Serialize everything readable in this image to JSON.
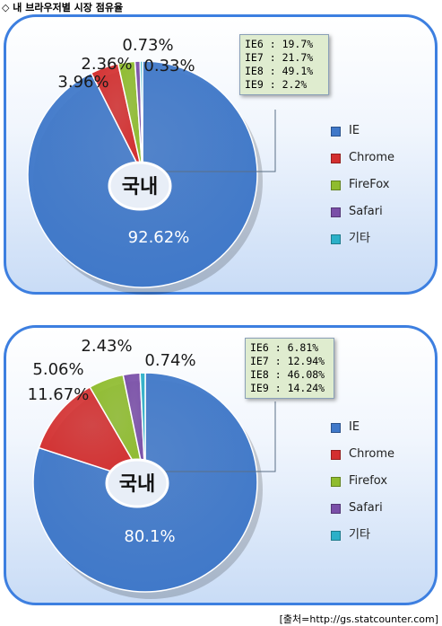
{
  "page_title": "◇ 내 브라우저별 시장 점유율",
  "source": "[출처=http://gs.statcounter.com]",
  "chart_data": [
    {
      "type": "pie",
      "center_label": "국내",
      "categories": [
        "IE",
        "Chrome",
        "FireFox",
        "Safari",
        "기타"
      ],
      "values": [
        92.62,
        3.96,
        2.36,
        0.73,
        0.33
      ],
      "value_labels": [
        "92.62%",
        "3.96%",
        "2.36%",
        "0.73%",
        "0.33%"
      ],
      "colors": [
        "#3f78c9",
        "#d32f2f",
        "#8fbc2e",
        "#7a4fa8",
        "#2bb0c8"
      ],
      "ie_versions": [
        {
          "version": "IE6 :",
          "value": "19.7%"
        },
        {
          "version": "IE7 :",
          "value": "21.7%"
        },
        {
          "version": "IE8 :",
          "value": "49.1%"
        },
        {
          "version": "IE9 :",
          "value": "2.2%"
        }
      ]
    },
    {
      "type": "pie",
      "center_label": "국내",
      "categories": [
        "IE",
        "Chrome",
        "Firefox",
        "Safari",
        "기타"
      ],
      "values": [
        80.1,
        11.67,
        5.06,
        2.43,
        0.74
      ],
      "value_labels": [
        "80.1%",
        "11.67%",
        "5.06%",
        "2.43%",
        "0.74%"
      ],
      "colors": [
        "#3f78c9",
        "#d32f2f",
        "#8fbc2e",
        "#7a4fa8",
        "#2bb0c8"
      ],
      "ie_versions": [
        {
          "version": "IE6 :",
          "value": "6.81%"
        },
        {
          "version": "IE7 :",
          "value": "12.94%"
        },
        {
          "version": "IE8 :",
          "value": "46.08%"
        },
        {
          "version": "IE9 :",
          "value": "14.24%"
        }
      ]
    }
  ]
}
